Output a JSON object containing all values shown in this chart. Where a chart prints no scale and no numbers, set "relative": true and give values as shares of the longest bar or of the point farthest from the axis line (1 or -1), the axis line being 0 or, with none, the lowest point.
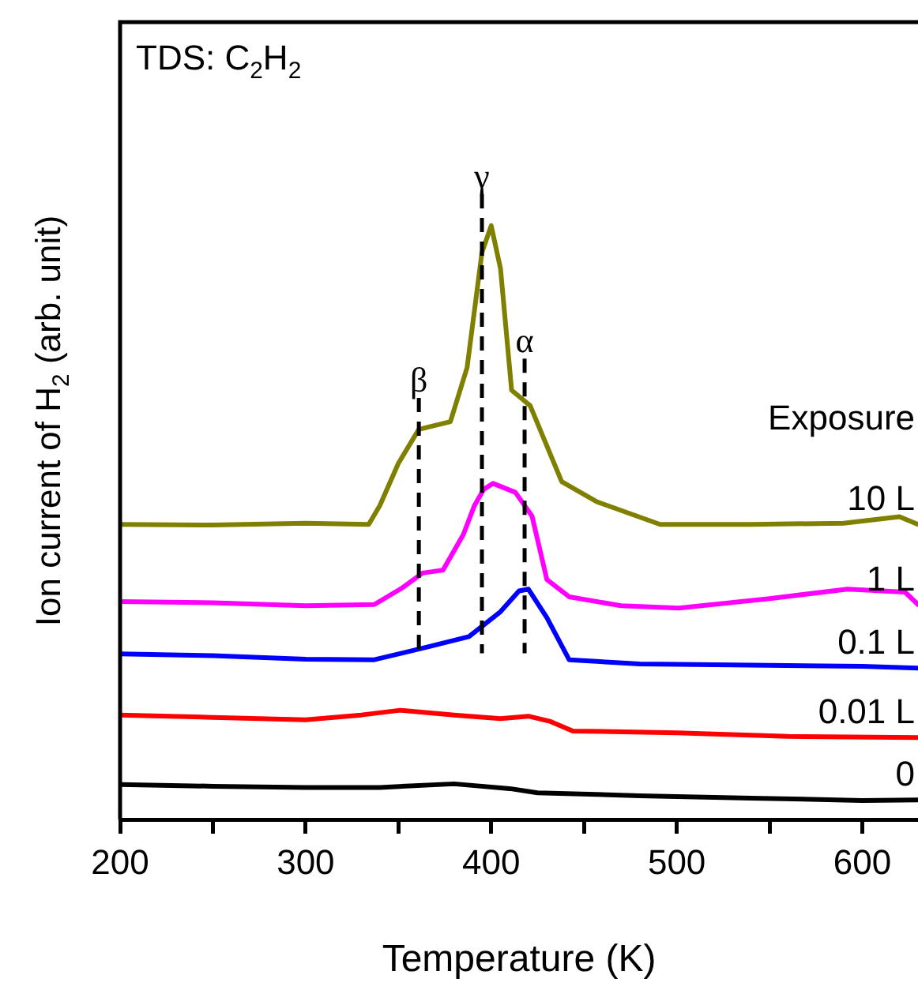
{
  "chart_data": {
    "type": "line",
    "title": "TDS: C$_{2}$H$_{2}$",
    "xlabel": "Temperature (K)",
    "ylabel": "Ion current of H$_{2}$ (arb. unit)",
    "legend_title": "Exposure",
    "relative": true,
    "legend": false,
    "grid": false,
    "marker": "none",
    "line_style": "solid",
    "xlim": [
      200,
      630
    ],
    "xticks": [
      200,
      {
        "value": 250,
        "label": null
      },
      300,
      {
        "value": 350,
        "label": null
      },
      400,
      {
        "value": 450,
        "label": null
      },
      500,
      {
        "value": 550,
        "label": null
      },
      600
    ],
    "series": [
      {
        "name": "0",
        "color": "#000000",
        "x": [
          200,
          250,
          300,
          340,
          380,
          410,
          425,
          480,
          540,
          600,
          630
        ],
        "values": [
          0.059,
          0.056,
          0.054,
          0.054,
          0.06,
          0.052,
          0.045,
          0.04,
          0.036,
          0.032,
          0.033
        ]
      },
      {
        "name": "0.01 L",
        "color": "#ff0000",
        "x": [
          200,
          250,
          300,
          330,
          351,
          380,
          405,
          420,
          432,
          444,
          500,
          560,
          630
        ],
        "values": [
          0.176,
          0.172,
          0.168,
          0.176,
          0.184,
          0.176,
          0.17,
          0.174,
          0.165,
          0.149,
          0.146,
          0.14,
          0.138
        ]
      },
      {
        "name": "0.1 L",
        "color": "#0000ff",
        "x": [
          200,
          250,
          300,
          337,
          365,
          388,
          405,
          415,
          420,
          430,
          442,
          480,
          540,
          600,
          630
        ],
        "values": [
          0.279,
          0.276,
          0.27,
          0.269,
          0.29,
          0.308,
          0.35,
          0.385,
          0.388,
          0.34,
          0.269,
          0.262,
          0.26,
          0.258,
          0.255
        ]
      },
      {
        "name": "1 L",
        "color": "#ff00ff",
        "x": [
          200,
          250,
          300,
          337,
          352,
          363,
          374,
          385,
          391,
          396,
          401,
          413,
          422,
          430,
          442,
          470,
          501,
          550,
          592,
          623,
          630
        ],
        "values": [
          0.367,
          0.365,
          0.36,
          0.362,
          0.39,
          0.415,
          0.42,
          0.48,
          0.529,
          0.556,
          0.566,
          0.551,
          0.511,
          0.404,
          0.375,
          0.36,
          0.356,
          0.372,
          0.388,
          0.383,
          0.362
        ]
      },
      {
        "name": "10 L",
        "color": "#808000",
        "x": [
          200,
          250,
          300,
          334,
          340,
          350,
          361,
          378,
          387,
          395,
          400,
          405,
          411,
          421,
          438,
          457,
          491,
          540,
          590,
          620,
          630
        ],
        "values": [
          0.497,
          0.496,
          0.499,
          0.497,
          0.529,
          0.6,
          0.657,
          0.67,
          0.761,
          0.955,
          1.0,
          0.928,
          0.723,
          0.697,
          0.569,
          0.535,
          0.497,
          0.497,
          0.499,
          0.51,
          0.497
        ]
      }
    ],
    "ref_lines": [
      {
        "axis": "x",
        "value": 361,
        "label": "β",
        "line_style": "dashed",
        "color": "#000000"
      },
      {
        "axis": "x",
        "value": 395,
        "label": "γ",
        "line_style": "dashed",
        "color": "#000000"
      },
      {
        "axis": "x",
        "value": 418,
        "label": "α",
        "line_style": "dashed",
        "color": "#000000"
      }
    ]
  }
}
